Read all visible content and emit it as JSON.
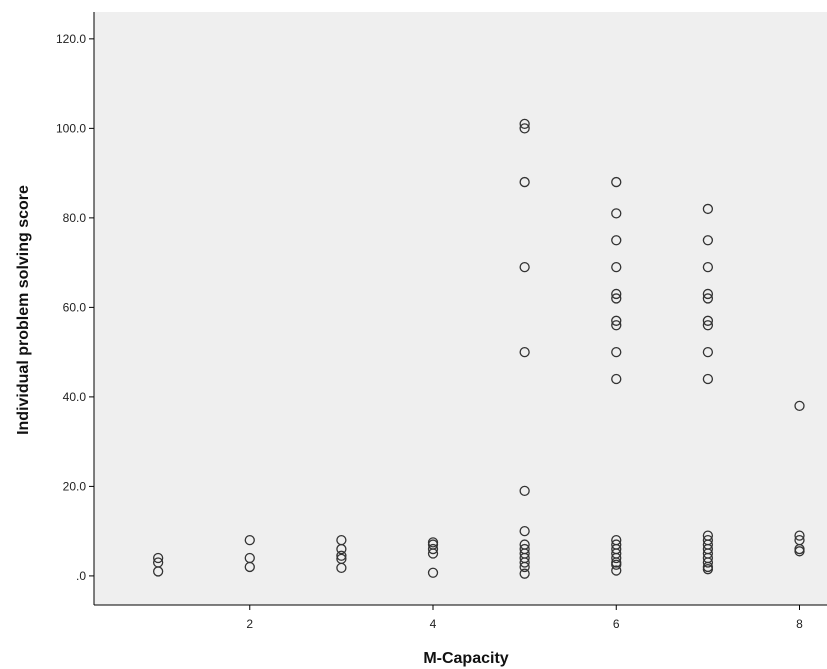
{
  "chart_data": {
    "type": "scatter",
    "title": "",
    "xlabel": "M-Capacity",
    "ylabel": "Individual problem solving score",
    "xlim": [
      0.3,
      8.3
    ],
    "ylim": [
      -6.5,
      126
    ],
    "x_ticks": [
      2,
      4,
      6,
      8
    ],
    "x_tick_labels": [
      "2",
      "4",
      "6",
      "8"
    ],
    "y_ticks": [
      0,
      20,
      40,
      60,
      80,
      100,
      120
    ],
    "y_tick_labels": [
      ".0",
      "20.0",
      "40.0",
      "60.0",
      "80.0",
      "100.0",
      "120.0"
    ],
    "grid": false,
    "legend": "none",
    "colors": {
      "plot_background": "#efefef",
      "marker_stroke": "#333333",
      "axis": "#000000"
    },
    "points": [
      {
        "x": 1,
        "y": 1
      },
      {
        "x": 1,
        "y": 3
      },
      {
        "x": 1,
        "y": 4
      },
      {
        "x": 2,
        "y": 2
      },
      {
        "x": 2,
        "y": 4
      },
      {
        "x": 2,
        "y": 8
      },
      {
        "x": 3,
        "y": 1.8
      },
      {
        "x": 3,
        "y": 3.8
      },
      {
        "x": 3,
        "y": 4.5
      },
      {
        "x": 3,
        "y": 6
      },
      {
        "x": 3,
        "y": 8
      },
      {
        "x": 4,
        "y": 0.7
      },
      {
        "x": 4,
        "y": 5
      },
      {
        "x": 4,
        "y": 6
      },
      {
        "x": 4,
        "y": 7
      },
      {
        "x": 4,
        "y": 7.5
      },
      {
        "x": 5,
        "y": 101
      },
      {
        "x": 5,
        "y": 100
      },
      {
        "x": 5,
        "y": 88
      },
      {
        "x": 5,
        "y": 69
      },
      {
        "x": 5,
        "y": 50
      },
      {
        "x": 5,
        "y": 19
      },
      {
        "x": 5,
        "y": 10
      },
      {
        "x": 5,
        "y": 7
      },
      {
        "x": 5,
        "y": 6
      },
      {
        "x": 5,
        "y": 5
      },
      {
        "x": 5,
        "y": 4
      },
      {
        "x": 5,
        "y": 3
      },
      {
        "x": 5,
        "y": 2
      },
      {
        "x": 5,
        "y": 0.5
      },
      {
        "x": 6,
        "y": 88
      },
      {
        "x": 6,
        "y": 81
      },
      {
        "x": 6,
        "y": 75
      },
      {
        "x": 6,
        "y": 69
      },
      {
        "x": 6,
        "y": 63
      },
      {
        "x": 6,
        "y": 62
      },
      {
        "x": 6,
        "y": 57
      },
      {
        "x": 6,
        "y": 56
      },
      {
        "x": 6,
        "y": 50
      },
      {
        "x": 6,
        "y": 44
      },
      {
        "x": 6,
        "y": 8
      },
      {
        "x": 6,
        "y": 7
      },
      {
        "x": 6,
        "y": 6
      },
      {
        "x": 6,
        "y": 5
      },
      {
        "x": 6,
        "y": 4
      },
      {
        "x": 6,
        "y": 3
      },
      {
        "x": 6,
        "y": 2.5
      },
      {
        "x": 6,
        "y": 1.2
      },
      {
        "x": 7,
        "y": 82
      },
      {
        "x": 7,
        "y": 75
      },
      {
        "x": 7,
        "y": 69
      },
      {
        "x": 7,
        "y": 63
      },
      {
        "x": 7,
        "y": 62
      },
      {
        "x": 7,
        "y": 57
      },
      {
        "x": 7,
        "y": 56
      },
      {
        "x": 7,
        "y": 50
      },
      {
        "x": 7,
        "y": 44
      },
      {
        "x": 7,
        "y": 9
      },
      {
        "x": 7,
        "y": 8
      },
      {
        "x": 7,
        "y": 7
      },
      {
        "x": 7,
        "y": 6
      },
      {
        "x": 7,
        "y": 5
      },
      {
        "x": 7,
        "y": 4
      },
      {
        "x": 7,
        "y": 3
      },
      {
        "x": 7,
        "y": 2
      },
      {
        "x": 7,
        "y": 1.5
      },
      {
        "x": 8,
        "y": 38
      },
      {
        "x": 8,
        "y": 9
      },
      {
        "x": 8,
        "y": 8
      },
      {
        "x": 8,
        "y": 6
      },
      {
        "x": 8,
        "y": 5.5
      }
    ]
  }
}
